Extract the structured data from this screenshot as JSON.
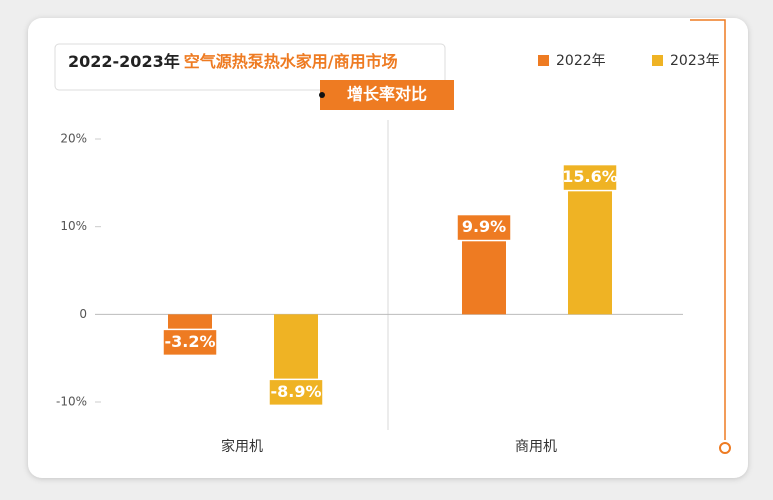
{
  "chart_data": {
    "type": "bar",
    "title_parts": [
      "2022-2023年",
      "空气源热泵热水家用/商用市场"
    ],
    "subtitle": "增长率对比",
    "categories": [
      "家用机",
      "商用机"
    ],
    "series": [
      {
        "name": "2022年",
        "color": "#ee7b22",
        "values": [
          -3.2,
          9.9
        ],
        "value_labels": [
          "-3.2%",
          "9.9%"
        ]
      },
      {
        "name": "2023年",
        "color": "#efb324",
        "values": [
          -8.9,
          15.6
        ],
        "value_labels": [
          "-8.9%",
          "15.6%"
        ]
      }
    ],
    "ylim": [
      -10,
      20
    ],
    "yticks": [
      {
        "value": -10,
        "label": "-10%"
      },
      0,
      {
        "value": 10,
        "label": "10%"
      },
      {
        "value": 20,
        "label": "20%"
      }
    ],
    "legend": "top-right"
  }
}
